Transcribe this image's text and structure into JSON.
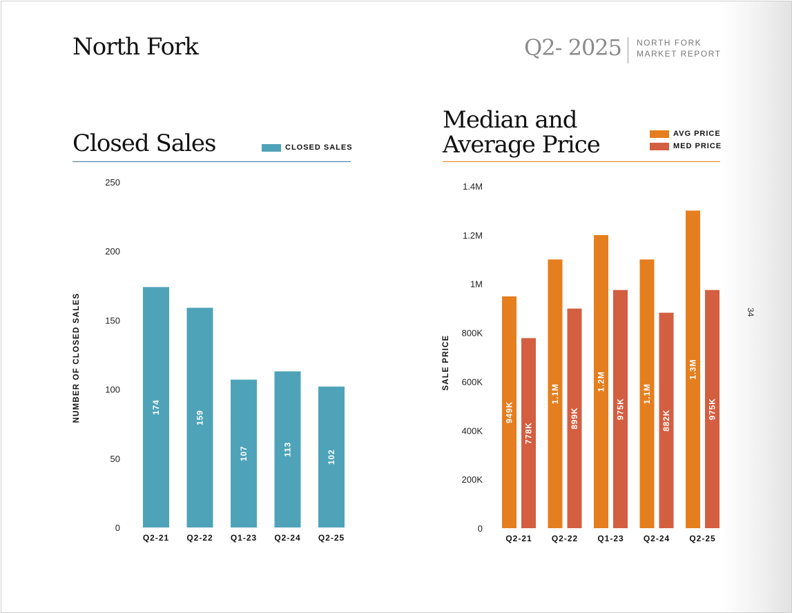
{
  "header": {
    "title": "North Fork",
    "report_id": "Q2- 2025",
    "report_sub_line1": "NORTH FORK",
    "report_sub_line2": "MARKET REPORT",
    "page_number": "34"
  },
  "colors": {
    "closed_sales": "#4FA3B8",
    "avg_price": "#E57E1E",
    "med_price": "#D45E40",
    "left_rule": "#3B6EA8",
    "right_rule": "#E57E1E"
  },
  "chart_data": [
    {
      "type": "bar",
      "title": "Closed Sales",
      "categories": [
        "Q2-21",
        "Q2-22",
        "Q1-23",
        "Q2-24",
        "Q2-25"
      ],
      "series": [
        {
          "name": "CLOSED SALES",
          "values": [
            174,
            159,
            107,
            113,
            102
          ],
          "labels": [
            "174",
            "159",
            "107",
            "113",
            "102"
          ]
        }
      ],
      "ylabel": "NUMBER OF CLOSED SALES",
      "xlabel": "",
      "ylim": [
        0,
        250
      ],
      "yticks": [
        0,
        50,
        100,
        150,
        200,
        250
      ],
      "ytick_labels": [
        "0",
        "50",
        "100",
        "150",
        "200",
        "250"
      ],
      "legend": "top-right",
      "grid": false
    },
    {
      "type": "bar",
      "title_line1": "Median and",
      "title_line2": "Average Price",
      "categories": [
        "Q2-21",
        "Q2-22",
        "Q1-23",
        "Q2-24",
        "Q2-25"
      ],
      "series": [
        {
          "name": "AVG PRICE",
          "values": [
            949000,
            1100000,
            1200000,
            1100000,
            1300000
          ],
          "labels": [
            "949K",
            "1.1M",
            "1.2M",
            "1.1M",
            "1.3M"
          ]
        },
        {
          "name": "MED PRICE",
          "values": [
            778000,
            899000,
            975000,
            882000,
            975000
          ],
          "labels": [
            "778K",
            "899K",
            "975K",
            "882K",
            "975K"
          ]
        }
      ],
      "ylabel": "SALE PRICE",
      "xlabel": "",
      "ylim": [
        0,
        1400000
      ],
      "yticks": [
        0,
        200000,
        400000,
        600000,
        800000,
        1000000,
        1200000,
        1400000
      ],
      "ytick_labels": [
        "0",
        "200K",
        "400K",
        "600K",
        "800K",
        "1M",
        "1.2M",
        "1.4M"
      ],
      "legend": "top-right",
      "grid": false
    }
  ]
}
